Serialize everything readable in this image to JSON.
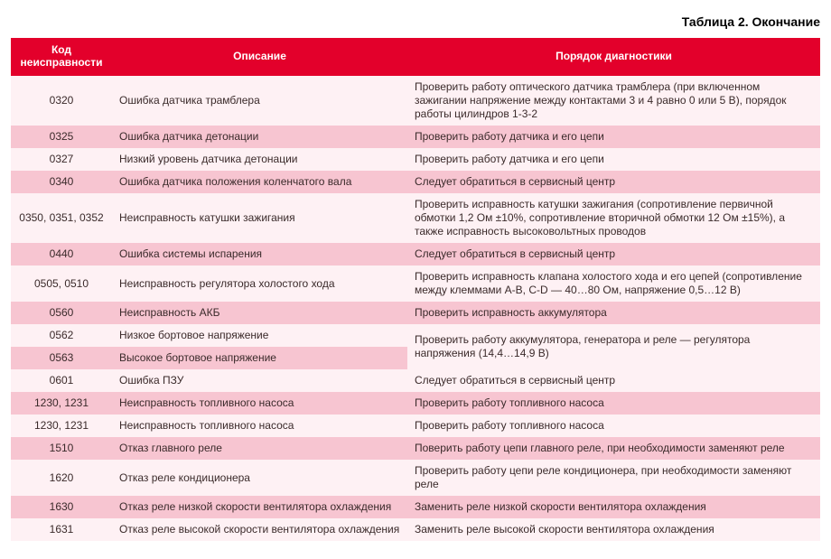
{
  "caption": "Таблица 2. Окончание",
  "columns": {
    "code": "Код неисправности",
    "desc": "Описание",
    "diag": "Порядок диагностики"
  },
  "colors": {
    "header_bg": "#e3002b",
    "header_fg": "#ffffff",
    "band_light": "#fef1f4",
    "band_dark": "#f7c5d1",
    "text": "#3a2a2a"
  },
  "rows": [
    {
      "code": "0320",
      "desc": "Ошибка датчика трамблера",
      "diag": "Проверить работу оптического датчика трамблера (при включенном зажигании напряжение между контактами 3 и 4 равно 0 или 5 В), порядок работы цилиндров 1-3-2"
    },
    {
      "code": "0325",
      "desc": "Ошибка датчика детонации",
      "diag": "Проверить работу датчика и его цепи"
    },
    {
      "code": "0327",
      "desc": "Низкий уровень датчика детонации",
      "diag": "Проверить работу датчика и его цепи"
    },
    {
      "code": "0340",
      "desc": "Ошибка датчика положения коленчатого вала",
      "diag": "Следует обратиться в сервисный центр"
    },
    {
      "code": "0350, 0351, 0352",
      "desc": "Неисправность катушки зажигания",
      "diag": "Проверить исправность катушки зажигания (сопротивление первичной обмотки 1,2 Ом ±10%, сопротивление вторичной обмотки 12 Ом ±15%), а также исправность высоковольтных проводов"
    },
    {
      "code": "0440",
      "desc": "Ошибка системы испарения",
      "diag": "Следует обратиться в сервисный центр"
    },
    {
      "code": "0505, 0510",
      "desc": "Неисправность регулятора холостого хода",
      "diag": "Проверить исправность клапана холостого хода и его цепей (сопротивление между клеммами A-B, C-D — 40…80 Ом, напряжение 0,5…12 В)"
    },
    {
      "code": "0560",
      "desc": "Неисправность АКБ",
      "diag": "Проверить исправность аккумулятора"
    },
    {
      "code": "0562",
      "desc": "Низкое бортовое напряжение",
      "diag_merged_with_next": true,
      "diag": "Проверить работу аккумулятора, генератора и реле — регулятора напряжения (14,4…14,9 В)"
    },
    {
      "code": "0563",
      "desc": "Высокое бортовое напряжение",
      "diag_continued": true
    },
    {
      "code": "0601",
      "desc": "Ошибка ПЗУ",
      "diag": "Следует обратиться в сервисный центр"
    },
    {
      "code": "1230, 1231",
      "desc": "Неисправность топливного насоса",
      "diag": "Проверить работу топливного насоса"
    },
    {
      "code": "1230, 1231",
      "desc": "Неисправность топливного насоса",
      "diag": "Проверить работу топливного насоса"
    },
    {
      "code": "1510",
      "desc": "Отказ главного реле",
      "diag": "Поверить работу цепи главного реле, при необходимости заменяют реле"
    },
    {
      "code": "1620",
      "desc": "Отказ реле кондиционера",
      "diag": "Проверить работу цепи реле кондиционера, при необходимости заменяют реле"
    },
    {
      "code": "1630",
      "desc": "Отказ реле низкой скорости вентилятора охлаждения",
      "diag": "Заменить реле низкой скорости вентилятора охлаждения"
    },
    {
      "code": "1631",
      "desc": "Отказ реле высокой скорости вентилятора охлаждения",
      "diag": "Заменить реле высокой скорости вентилятора охлаждения"
    }
  ]
}
